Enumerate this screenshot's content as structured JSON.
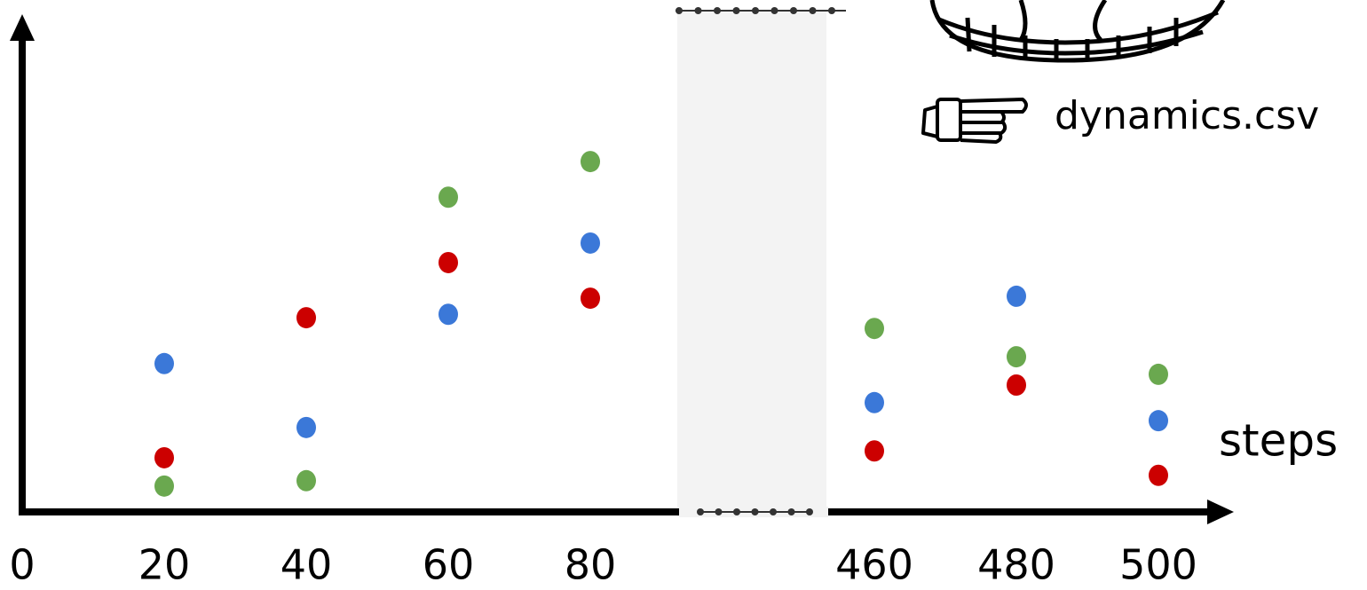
{
  "chart_data": {
    "type": "scatter",
    "x_label": "steps",
    "annotation": "dynamics.csv",
    "x": [
      20,
      40,
      60,
      80,
      460,
      480,
      500
    ],
    "xticks": [
      0,
      20,
      40,
      60,
      80,
      460,
      480,
      500
    ],
    "xlim": [
      0,
      500
    ],
    "ylim": [
      0,
      100
    ],
    "axis_break": [
      80,
      460
    ],
    "series": [
      {
        "color": "#3b78d8",
        "values": [
          30.4,
          17.3,
          40.5,
          55.1,
          22.4,
          44.2,
          18.7
        ]
      },
      {
        "color": "#cc0000",
        "values": [
          11.1,
          39.8,
          51.1,
          43.8,
          12.5,
          26.0,
          7.5
        ]
      },
      {
        "color": "#6aa84f",
        "values": [
          5.3,
          6.4,
          64.5,
          71.8,
          37.6,
          31.8,
          28.2
        ]
      }
    ]
  }
}
